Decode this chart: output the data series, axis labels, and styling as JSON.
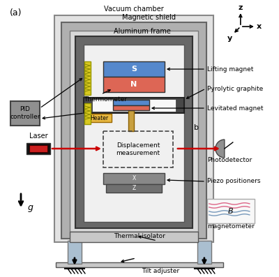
{
  "bg_color": "#ffffff",
  "labels": {
    "vacuum_chamber": "Vacuum chamber",
    "magnetic_shield": "Magnetic shield",
    "aluminum_frame": "Aluminum frame",
    "lifting_magnet": "Lifting magnet",
    "pyrolytic_graphite": "Pyrolytic graphite",
    "levitated_magnet": "Levitated magnet",
    "b_label": "b",
    "displacement": "Displacement\nmeasurement",
    "photodetector": "Photodetector",
    "piezo": "Piezo positioners",
    "magnetometer": "magnetometer",
    "thermal_isolator": "Thermal isolator",
    "tilt_adjuster": "Tilt adjuster",
    "pid": "PID\ncontroller",
    "laser": "Laser",
    "heater": "Heater",
    "thermometer": "Thermometer",
    "g": "g"
  }
}
